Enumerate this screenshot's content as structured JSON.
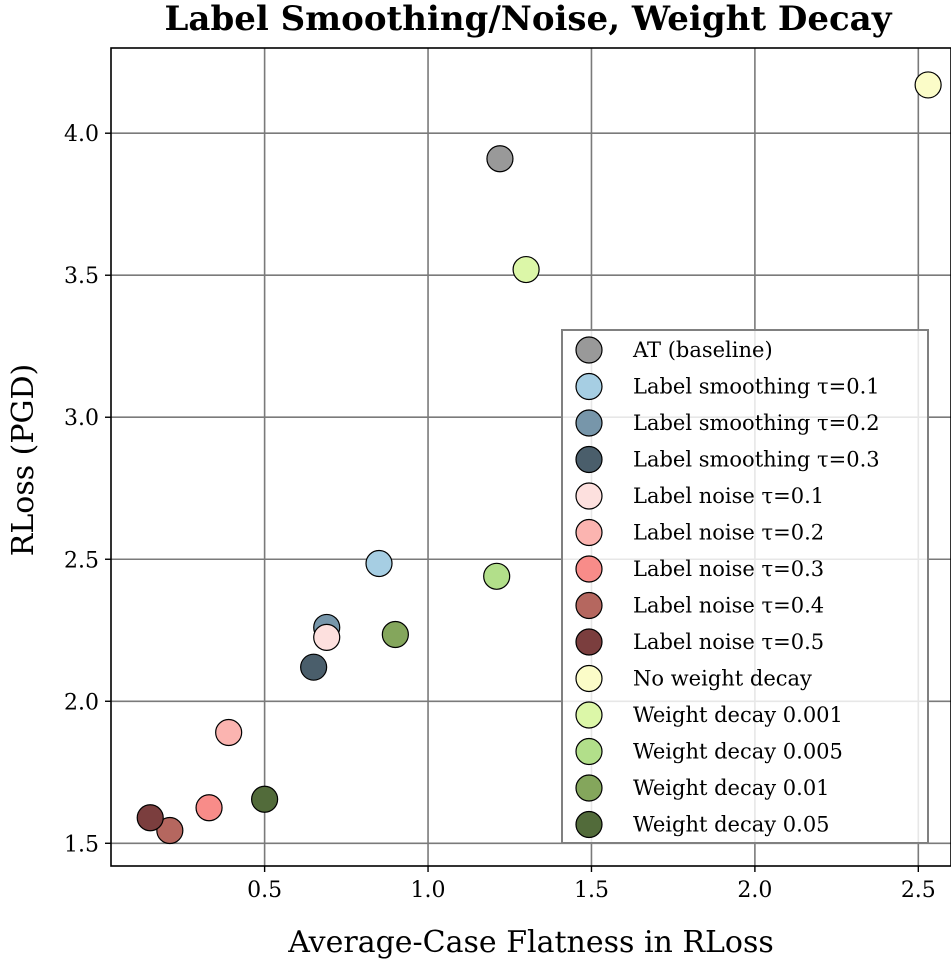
{
  "chart_data": {
    "type": "scatter",
    "title": "Label Smoothing/Noise, Weight Decay",
    "xlabel": "Average-Case Flatness in RLoss",
    "ylabel": "RLoss (PGD)",
    "xlim": [
      0.03,
      2.6
    ],
    "ylim": [
      1.42,
      4.3
    ],
    "xticks": [
      0.5,
      1.0,
      1.5,
      2.0,
      2.5
    ],
    "xtick_labels": [
      "0.5",
      "1.0",
      "1.5",
      "2.0",
      "2.5"
    ],
    "yticks": [
      1.5,
      2.0,
      2.5,
      3.0,
      3.5,
      4.0
    ],
    "ytick_labels": [
      "1.5",
      "2.0",
      "2.5",
      "3.0",
      "3.5",
      "4.0"
    ],
    "grid": true,
    "legend_position": "lower-right",
    "series": [
      {
        "name": "AT (baseline)",
        "color": "#999999",
        "x": 1.22,
        "y": 3.91
      },
      {
        "name": "Label smoothing τ=0.1",
        "color": "#a6cee3",
        "x": 0.85,
        "y": 2.485
      },
      {
        "name": "Label smoothing τ=0.2",
        "color": "#7796aa",
        "x": 0.69,
        "y": 2.26
      },
      {
        "name": "Label smoothing τ=0.3",
        "color": "#4a5e6b",
        "x": 0.65,
        "y": 2.12
      },
      {
        "name": "Label noise τ=0.1",
        "color": "#fde0de",
        "x": 0.69,
        "y": 2.225
      },
      {
        "name": "Label noise τ=0.2",
        "color": "#fbb4b0",
        "x": 0.39,
        "y": 1.89
      },
      {
        "name": "Label noise τ=0.3",
        "color": "#f88c89",
        "x": 0.33,
        "y": 1.625
      },
      {
        "name": "Label noise τ=0.4",
        "color": "#b5675f",
        "x": 0.21,
        "y": 1.545
      },
      {
        "name": "Label noise τ=0.5",
        "color": "#7b3e3e",
        "x": 0.15,
        "y": 1.59
      },
      {
        "name": "No weight decay",
        "color": "#fbfcc8",
        "x": 2.53,
        "y": 4.17
      },
      {
        "name": "Weight decay 0.001",
        "color": "#dcf7a8",
        "x": 1.3,
        "y": 3.52
      },
      {
        "name": "Weight decay 0.005",
        "color": "#b2df8a",
        "x": 1.21,
        "y": 2.44
      },
      {
        "name": "Weight decay 0.01",
        "color": "#84a65c",
        "x": 0.9,
        "y": 2.235
      },
      {
        "name": "Weight decay 0.05",
        "color": "#526b3a",
        "x": 0.5,
        "y": 1.655
      }
    ]
  }
}
